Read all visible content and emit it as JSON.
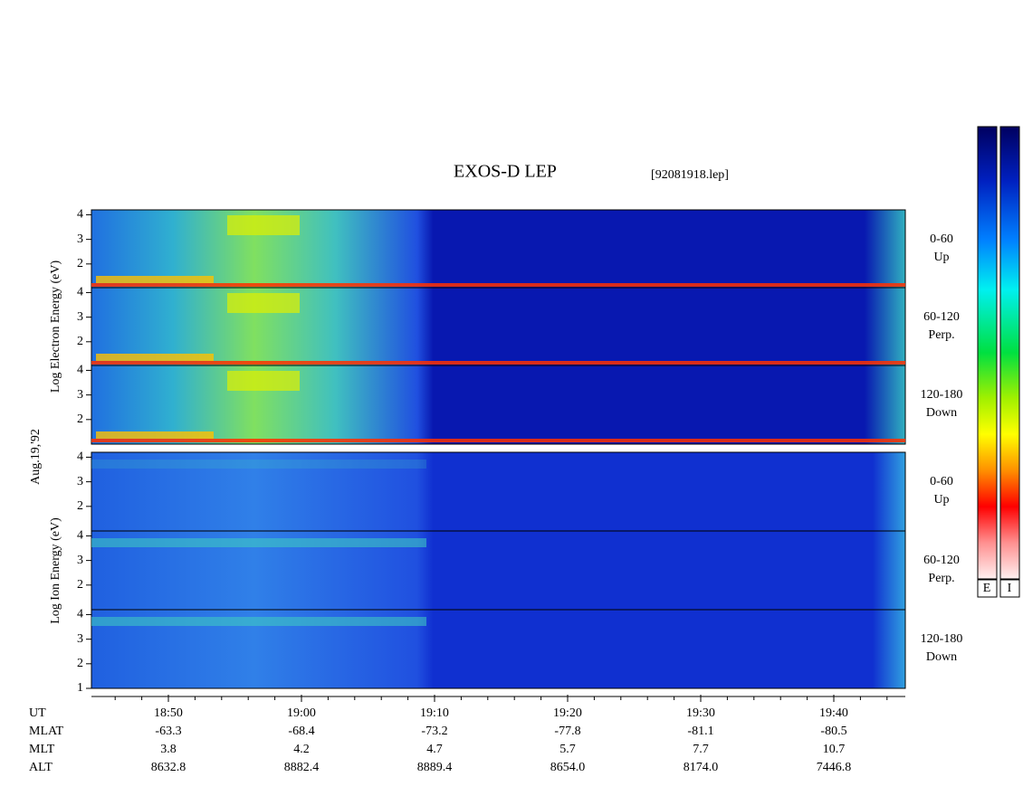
{
  "title": "EXOS-D LEP",
  "filename": "[92081918.lep]",
  "date_label": "Aug.19,'92",
  "electron_axis_label": "Log Electron Energy (eV)",
  "ion_axis_label": "Log Ion Energy (eV)",
  "panels": [
    {
      "group": "electron",
      "angle": "0-60",
      "direction": "Up",
      "yticks": [
        2,
        3,
        4
      ]
    },
    {
      "group": "electron",
      "angle": "60-120",
      "direction": "Perp.",
      "yticks": [
        2,
        3,
        4
      ]
    },
    {
      "group": "electron",
      "angle": "120-180",
      "direction": "Down",
      "yticks": [
        2,
        3,
        4
      ]
    },
    {
      "group": "ion",
      "angle": "0-60",
      "direction": "Up",
      "yticks": [
        2,
        3,
        4
      ]
    },
    {
      "group": "ion",
      "angle": "60-120",
      "direction": "Perp.",
      "yticks": [
        2,
        3,
        4
      ]
    },
    {
      "group": "ion",
      "angle": "120-180",
      "direction": "Down",
      "yticks": [
        1,
        2,
        3,
        4
      ]
    }
  ],
  "ylim": [
    1,
    4.2
  ],
  "time_axis": {
    "label": "UT",
    "ticks": [
      "18:50",
      "19:00",
      "19:10",
      "19:20",
      "19:30",
      "19:40"
    ]
  },
  "orbit_rows": [
    {
      "label": "MLAT",
      "values": [
        "-63.3",
        "-68.4",
        "-73.2",
        "-77.8",
        "-81.1",
        "-80.5"
      ]
    },
    {
      "label": "MLT",
      "values": [
        "3.8",
        "4.2",
        "4.7",
        "5.7",
        "7.7",
        "10.7"
      ]
    },
    {
      "label": "ALT",
      "values": [
        "8632.8",
        "8882.4",
        "8889.4",
        "8654.0",
        "8174.0",
        "7446.8"
      ]
    }
  ],
  "colorbars": [
    "E",
    "I"
  ]
}
